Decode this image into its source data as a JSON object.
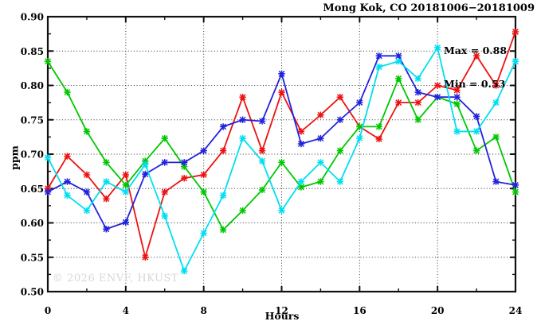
{
  "title": "Mong Kok, CO 20181006−20181009",
  "annotations": {
    "max_label": "Max = 0.88",
    "min_label": "Min = 0.53"
  },
  "watermark": "© 2026 ENVF, HKUST",
  "chart_data": {
    "type": "line",
    "title": "Mong Kok, CO 20181006−20181009",
    "xlabel": "Hours",
    "ylabel": "ppm",
    "xlim": [
      0,
      24
    ],
    "ylim": [
      0.5,
      0.9
    ],
    "x_ticks": [
      0,
      4,
      8,
      12,
      16,
      20,
      24
    ],
    "x_minor_ticks": [
      2,
      6,
      10,
      14,
      18,
      22
    ],
    "y_tick_step": 0.05,
    "y_minor_step": 0.025,
    "grid": "dotted-major",
    "legend": "none",
    "marker": "asterisk",
    "max": 0.88,
    "min": 0.53,
    "x": [
      0,
      1,
      2,
      3,
      4,
      5,
      6,
      7,
      8,
      9,
      10,
      11,
      12,
      13,
      14,
      15,
      16,
      17,
      18,
      19,
      20,
      21,
      22,
      23,
      24
    ],
    "series": [
      {
        "name": "red",
        "color": "#ee1111",
        "values": [
          0.65,
          0.697,
          0.67,
          0.635,
          0.67,
          0.55,
          0.645,
          0.665,
          0.67,
          0.705,
          0.783,
          0.705,
          0.79,
          0.733,
          0.757,
          0.783,
          0.74,
          0.722,
          0.775,
          0.775,
          0.8,
          0.793,
          0.843,
          0.8,
          0.878
        ]
      },
      {
        "name": "green",
        "color": "#00c800",
        "values": [
          0.835,
          0.79,
          0.733,
          0.688,
          0.655,
          0.69,
          0.723,
          0.682,
          0.645,
          0.59,
          0.618,
          0.648,
          0.688,
          0.652,
          0.66,
          0.705,
          0.74,
          0.74,
          0.81,
          0.75,
          0.783,
          0.773,
          0.705,
          0.725,
          0.645
        ]
      },
      {
        "name": "blue",
        "color": "#2222dd",
        "values": [
          0.645,
          0.66,
          0.645,
          0.591,
          0.601,
          0.671,
          0.688,
          0.688,
          0.705,
          0.74,
          0.75,
          0.748,
          0.817,
          0.715,
          0.723,
          0.75,
          0.775,
          0.843,
          0.843,
          0.79,
          0.783,
          0.783,
          0.755,
          0.66,
          0.655
        ]
      },
      {
        "name": "cyan",
        "color": "#00dff0",
        "values": [
          0.695,
          0.64,
          0.618,
          0.66,
          0.645,
          0.685,
          0.61,
          0.53,
          0.585,
          0.64,
          0.723,
          0.69,
          0.618,
          0.66,
          0.688,
          0.66,
          0.723,
          0.827,
          0.835,
          0.81,
          0.855,
          0.733,
          0.733,
          0.775,
          0.835
        ]
      }
    ]
  }
}
